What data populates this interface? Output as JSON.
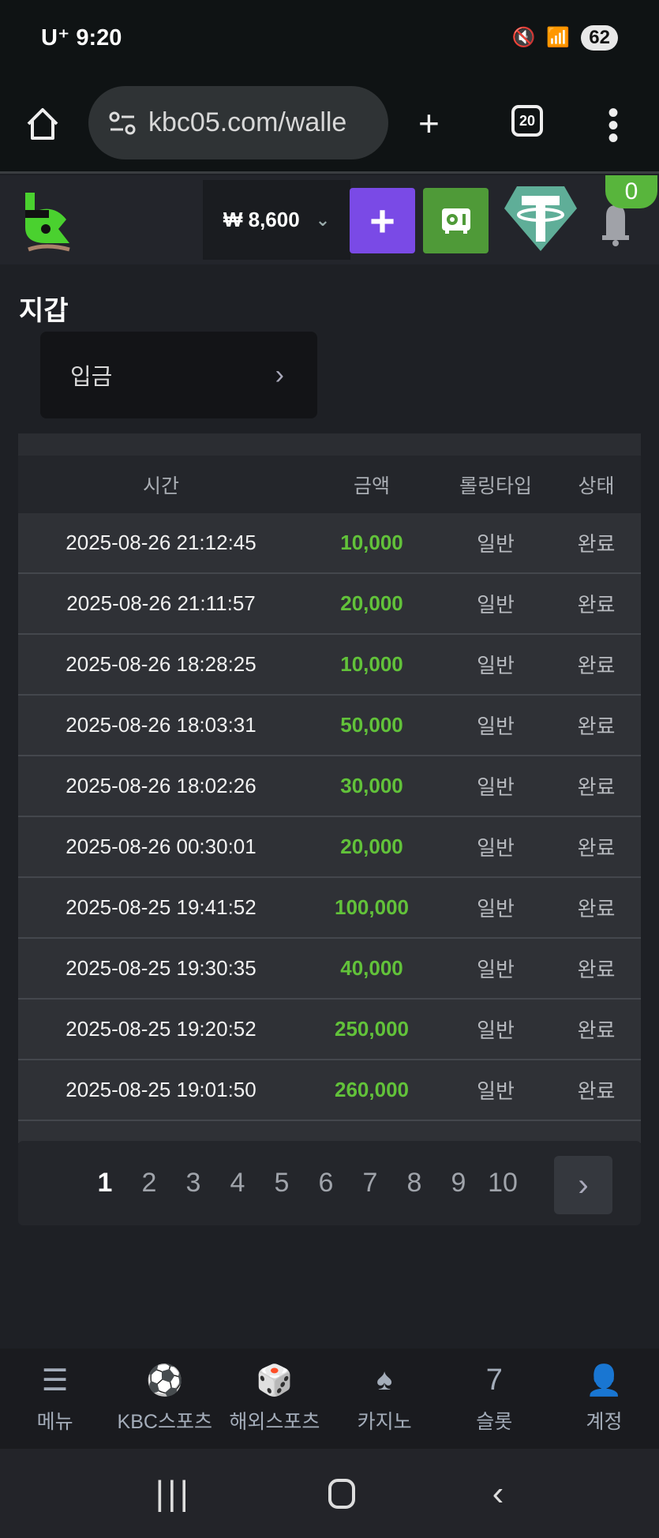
{
  "status_bar": {
    "carrier": "U⁺",
    "time": "9:20",
    "battery": "62"
  },
  "browser": {
    "url": "kbc05.com/walle",
    "tab_count": "20"
  },
  "header": {
    "balance": "₩ 8,600",
    "notification_count": "0",
    "colors": {
      "deposit_button": "#7a4ae6",
      "safe_button": "#4f9a38",
      "tether": "#5fae98"
    }
  },
  "page": {
    "title": "지갑",
    "deposit_label": "입금"
  },
  "table": {
    "columns": [
      "시간",
      "금액",
      "롤링타입",
      "상태"
    ],
    "rows": [
      [
        "2025-08-26 21:12:45",
        "10,000",
        "일반",
        "완료"
      ],
      [
        "2025-08-26 21:11:57",
        "20,000",
        "일반",
        "완료"
      ],
      [
        "2025-08-26 18:28:25",
        "10,000",
        "일반",
        "완료"
      ],
      [
        "2025-08-26 18:03:31",
        "50,000",
        "일반",
        "완료"
      ],
      [
        "2025-08-26 18:02:26",
        "30,000",
        "일반",
        "완료"
      ],
      [
        "2025-08-26 00:30:01",
        "20,000",
        "일반",
        "완료"
      ],
      [
        "2025-08-25 19:41:52",
        "100,000",
        "일반",
        "완료"
      ],
      [
        "2025-08-25 19:30:35",
        "40,000",
        "일반",
        "완료"
      ],
      [
        "2025-08-25 19:20:52",
        "250,000",
        "일반",
        "완료"
      ],
      [
        "2025-08-25 19:01:50",
        "260,000",
        "일반",
        "완료"
      ]
    ]
  },
  "pagination": {
    "pages": [
      "1",
      "2",
      "3",
      "4",
      "5",
      "6",
      "7",
      "8",
      "9",
      "10"
    ],
    "current": "1"
  },
  "bottom_nav": [
    {
      "label": "메뉴",
      "icon": "menu-search-icon"
    },
    {
      "label": "KBC스포츠",
      "icon": "soccer-ball-icon"
    },
    {
      "label": "해외스포츠",
      "icon": "dice-icon"
    },
    {
      "label": "카지노",
      "icon": "cards-icon"
    },
    {
      "label": "슬롯",
      "icon": "slot-icon"
    },
    {
      "label": "계정",
      "icon": "account-icon"
    }
  ]
}
